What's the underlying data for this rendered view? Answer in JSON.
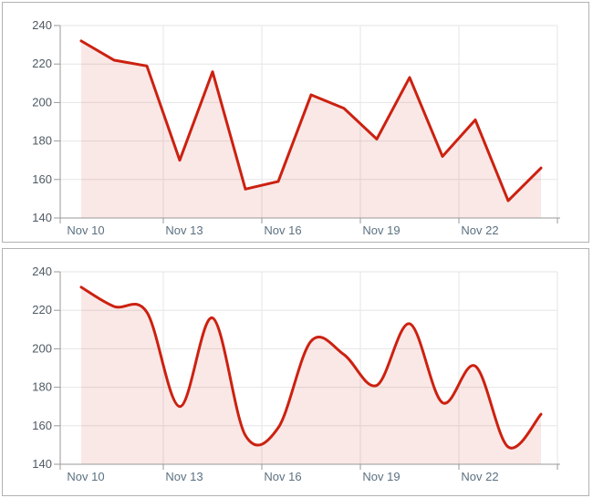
{
  "style": {
    "line_color": "#cc2110",
    "fill_color": "#cc2110",
    "fill_opacity": 0.1,
    "grid_color": "#e6e6e6",
    "axis_color": "#9a9a9a",
    "y_label_color": "#4e5a63",
    "x_label_color": "#5b7080",
    "panel_border_color": "#b2b2b2",
    "panel_background": "#ffffff"
  },
  "chart_data": [
    {
      "type": "area",
      "curve": "linear",
      "title": "",
      "xlabel": "",
      "ylabel": "",
      "categories": [
        "Nov 10",
        "Nov 11",
        "Nov 12",
        "Nov 13",
        "Nov 14",
        "Nov 15",
        "Nov 16",
        "Nov 17",
        "Nov 18",
        "Nov 19",
        "Nov 20",
        "Nov 21",
        "Nov 22",
        "Nov 23",
        "Nov 24"
      ],
      "values": [
        232,
        222,
        219,
        170,
        216,
        155,
        159,
        204,
        197,
        181,
        213,
        172,
        191,
        149,
        166
      ],
      "x_tick_labels": [
        "Nov 10",
        "Nov 13",
        "Nov 16",
        "Nov 19",
        "Nov 22"
      ],
      "x_tick_indices": [
        0,
        3,
        6,
        9,
        12
      ],
      "y_ticks": [
        140,
        160,
        180,
        200,
        220,
        240
      ],
      "ylim": [
        140,
        240
      ],
      "grid": true,
      "legend": false
    },
    {
      "type": "area",
      "curve": "spline",
      "title": "",
      "xlabel": "",
      "ylabel": "",
      "categories": [
        "Nov 10",
        "Nov 11",
        "Nov 12",
        "Nov 13",
        "Nov 14",
        "Nov 15",
        "Nov 16",
        "Nov 17",
        "Nov 18",
        "Nov 19",
        "Nov 20",
        "Nov 21",
        "Nov 22",
        "Nov 23",
        "Nov 24"
      ],
      "values": [
        232,
        222,
        219,
        170,
        216,
        155,
        159,
        204,
        197,
        181,
        213,
        172,
        191,
        149,
        166
      ],
      "x_tick_labels": [
        "Nov 10",
        "Nov 13",
        "Nov 16",
        "Nov 19",
        "Nov 22"
      ],
      "x_tick_indices": [
        0,
        3,
        6,
        9,
        12
      ],
      "y_ticks": [
        140,
        160,
        180,
        200,
        220,
        240
      ],
      "ylim": [
        140,
        240
      ],
      "grid": true,
      "legend": false
    }
  ]
}
